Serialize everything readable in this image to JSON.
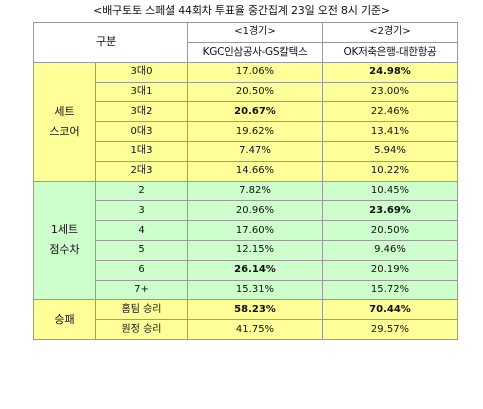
{
  "title": "<배구토토 스페셜 44회차 투표율 중간집계 23일 오전 8시 기준>",
  "header": {
    "gubun": "구분",
    "games": [
      {
        "label": "<1경기>",
        "teams": "KGC인삼공사-GS칼텍스"
      },
      {
        "label": "<2경기>",
        "teams": "OK저축은행-대한항공"
      }
    ]
  },
  "groups": [
    {
      "label_lines": [
        "세트",
        "스코어"
      ],
      "color": "#ffff99",
      "rows": [
        {
          "label": "3대0",
          "g1": "17.06%",
          "g2": "24.98%",
          "g1_bold": false,
          "g2_bold": true
        },
        {
          "label": "3대1",
          "g1": "20.50%",
          "g2": "23.00%",
          "g1_bold": false,
          "g2_bold": false
        },
        {
          "label": "3대2",
          "g1": "20.67%",
          "g2": "22.46%",
          "g1_bold": true,
          "g2_bold": false
        },
        {
          "label": "0대3",
          "g1": "19.62%",
          "g2": "13.41%",
          "g1_bold": false,
          "g2_bold": false
        },
        {
          "label": "1대3",
          "g1": "7.47%",
          "g2": "5.94%",
          "g1_bold": false,
          "g2_bold": false
        },
        {
          "label": "2대3",
          "g1": "14.66%",
          "g2": "10.22%",
          "g1_bold": false,
          "g2_bold": false
        }
      ]
    },
    {
      "label_lines": [
        "1세트",
        "점수차"
      ],
      "color": "#ccffcc",
      "rows": [
        {
          "label": "2",
          "g1": "7.82%",
          "g2": "10.45%",
          "g1_bold": false,
          "g2_bold": false
        },
        {
          "label": "3",
          "g1": "20.96%",
          "g2": "23.69%",
          "g1_bold": false,
          "g2_bold": true
        },
        {
          "label": "4",
          "g1": "17.60%",
          "g2": "20.50%",
          "g1_bold": false,
          "g2_bold": false
        },
        {
          "label": "5",
          "g1": "12.15%",
          "g2": "9.46%",
          "g1_bold": false,
          "g2_bold": false
        },
        {
          "label": "6",
          "g1": "26.14%",
          "g2": "20.19%",
          "g1_bold": true,
          "g2_bold": false
        },
        {
          "label": "7+",
          "g1": "15.31%",
          "g2": "15.72%",
          "g1_bold": false,
          "g2_bold": false
        }
      ]
    },
    {
      "label_lines": [
        "승패"
      ],
      "color": "#ffff99",
      "rows": [
        {
          "label": "홈팀 승리",
          "g1": "58.23%",
          "g2": "70.44%",
          "g1_bold": true,
          "g2_bold": true
        },
        {
          "label": "원정 승리",
          "g1": "41.75%",
          "g2": "29.57%",
          "g1_bold": false,
          "g2_bold": false
        }
      ]
    }
  ]
}
